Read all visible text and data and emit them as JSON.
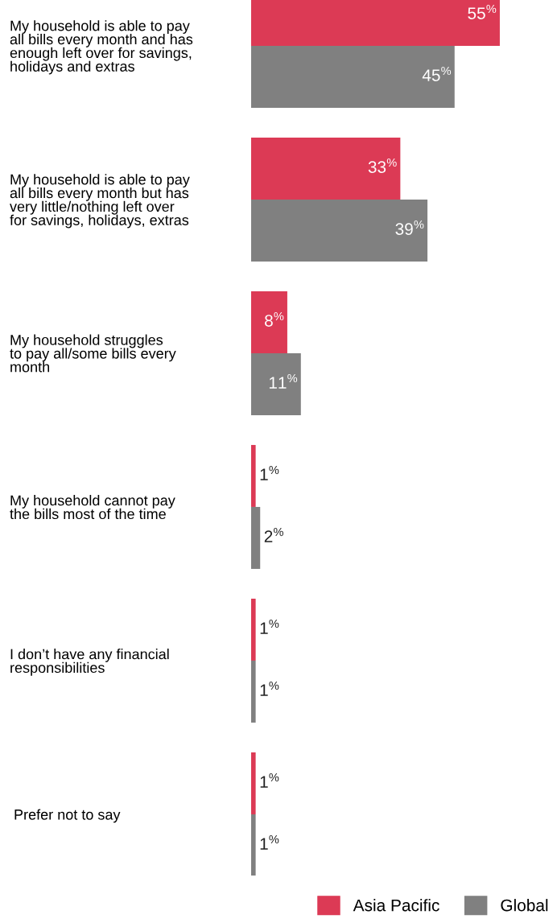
{
  "chart_data": {
    "type": "bar",
    "orientation": "horizontal",
    "categories": [
      "My household is able to pay\nall bills every month and has\nenough left over for savings,\nholidays and extras",
      "My household is able to pay\nall bills every month but has\nvery little/nothing left over\nfor savings, holidays, extras",
      "My household struggles\nto pay all/some bills every\nmonth",
      "My household cannot pay\nthe bills most of the time",
      "I don’t have any financial\nresponsibilities",
      " Prefer not to say"
    ],
    "series": [
      {
        "name": "Asia Pacific",
        "color": "#dc3a55",
        "values": [
          55,
          33,
          8,
          1,
          1,
          1
        ],
        "value_labels": [
          "55$^{%}$",
          "33$^{%}$",
          "8$^{%}$",
          "1$^{%}$",
          "1$^{%}$",
          "1$^{%}$"
        ]
      },
      {
        "name": "Global",
        "color": "#808080",
        "values": [
          45,
          39,
          11,
          2,
          1,
          1
        ],
        "value_labels": [
          "45$^{%}$",
          "39$^{%}$",
          "11$^{%}$",
          "2$^{%}$",
          "1$^{%}$",
          "1$^{%}$"
        ]
      }
    ],
    "tick_labels": "y",
    "grid": false,
    "legend": "bottom right"
  }
}
